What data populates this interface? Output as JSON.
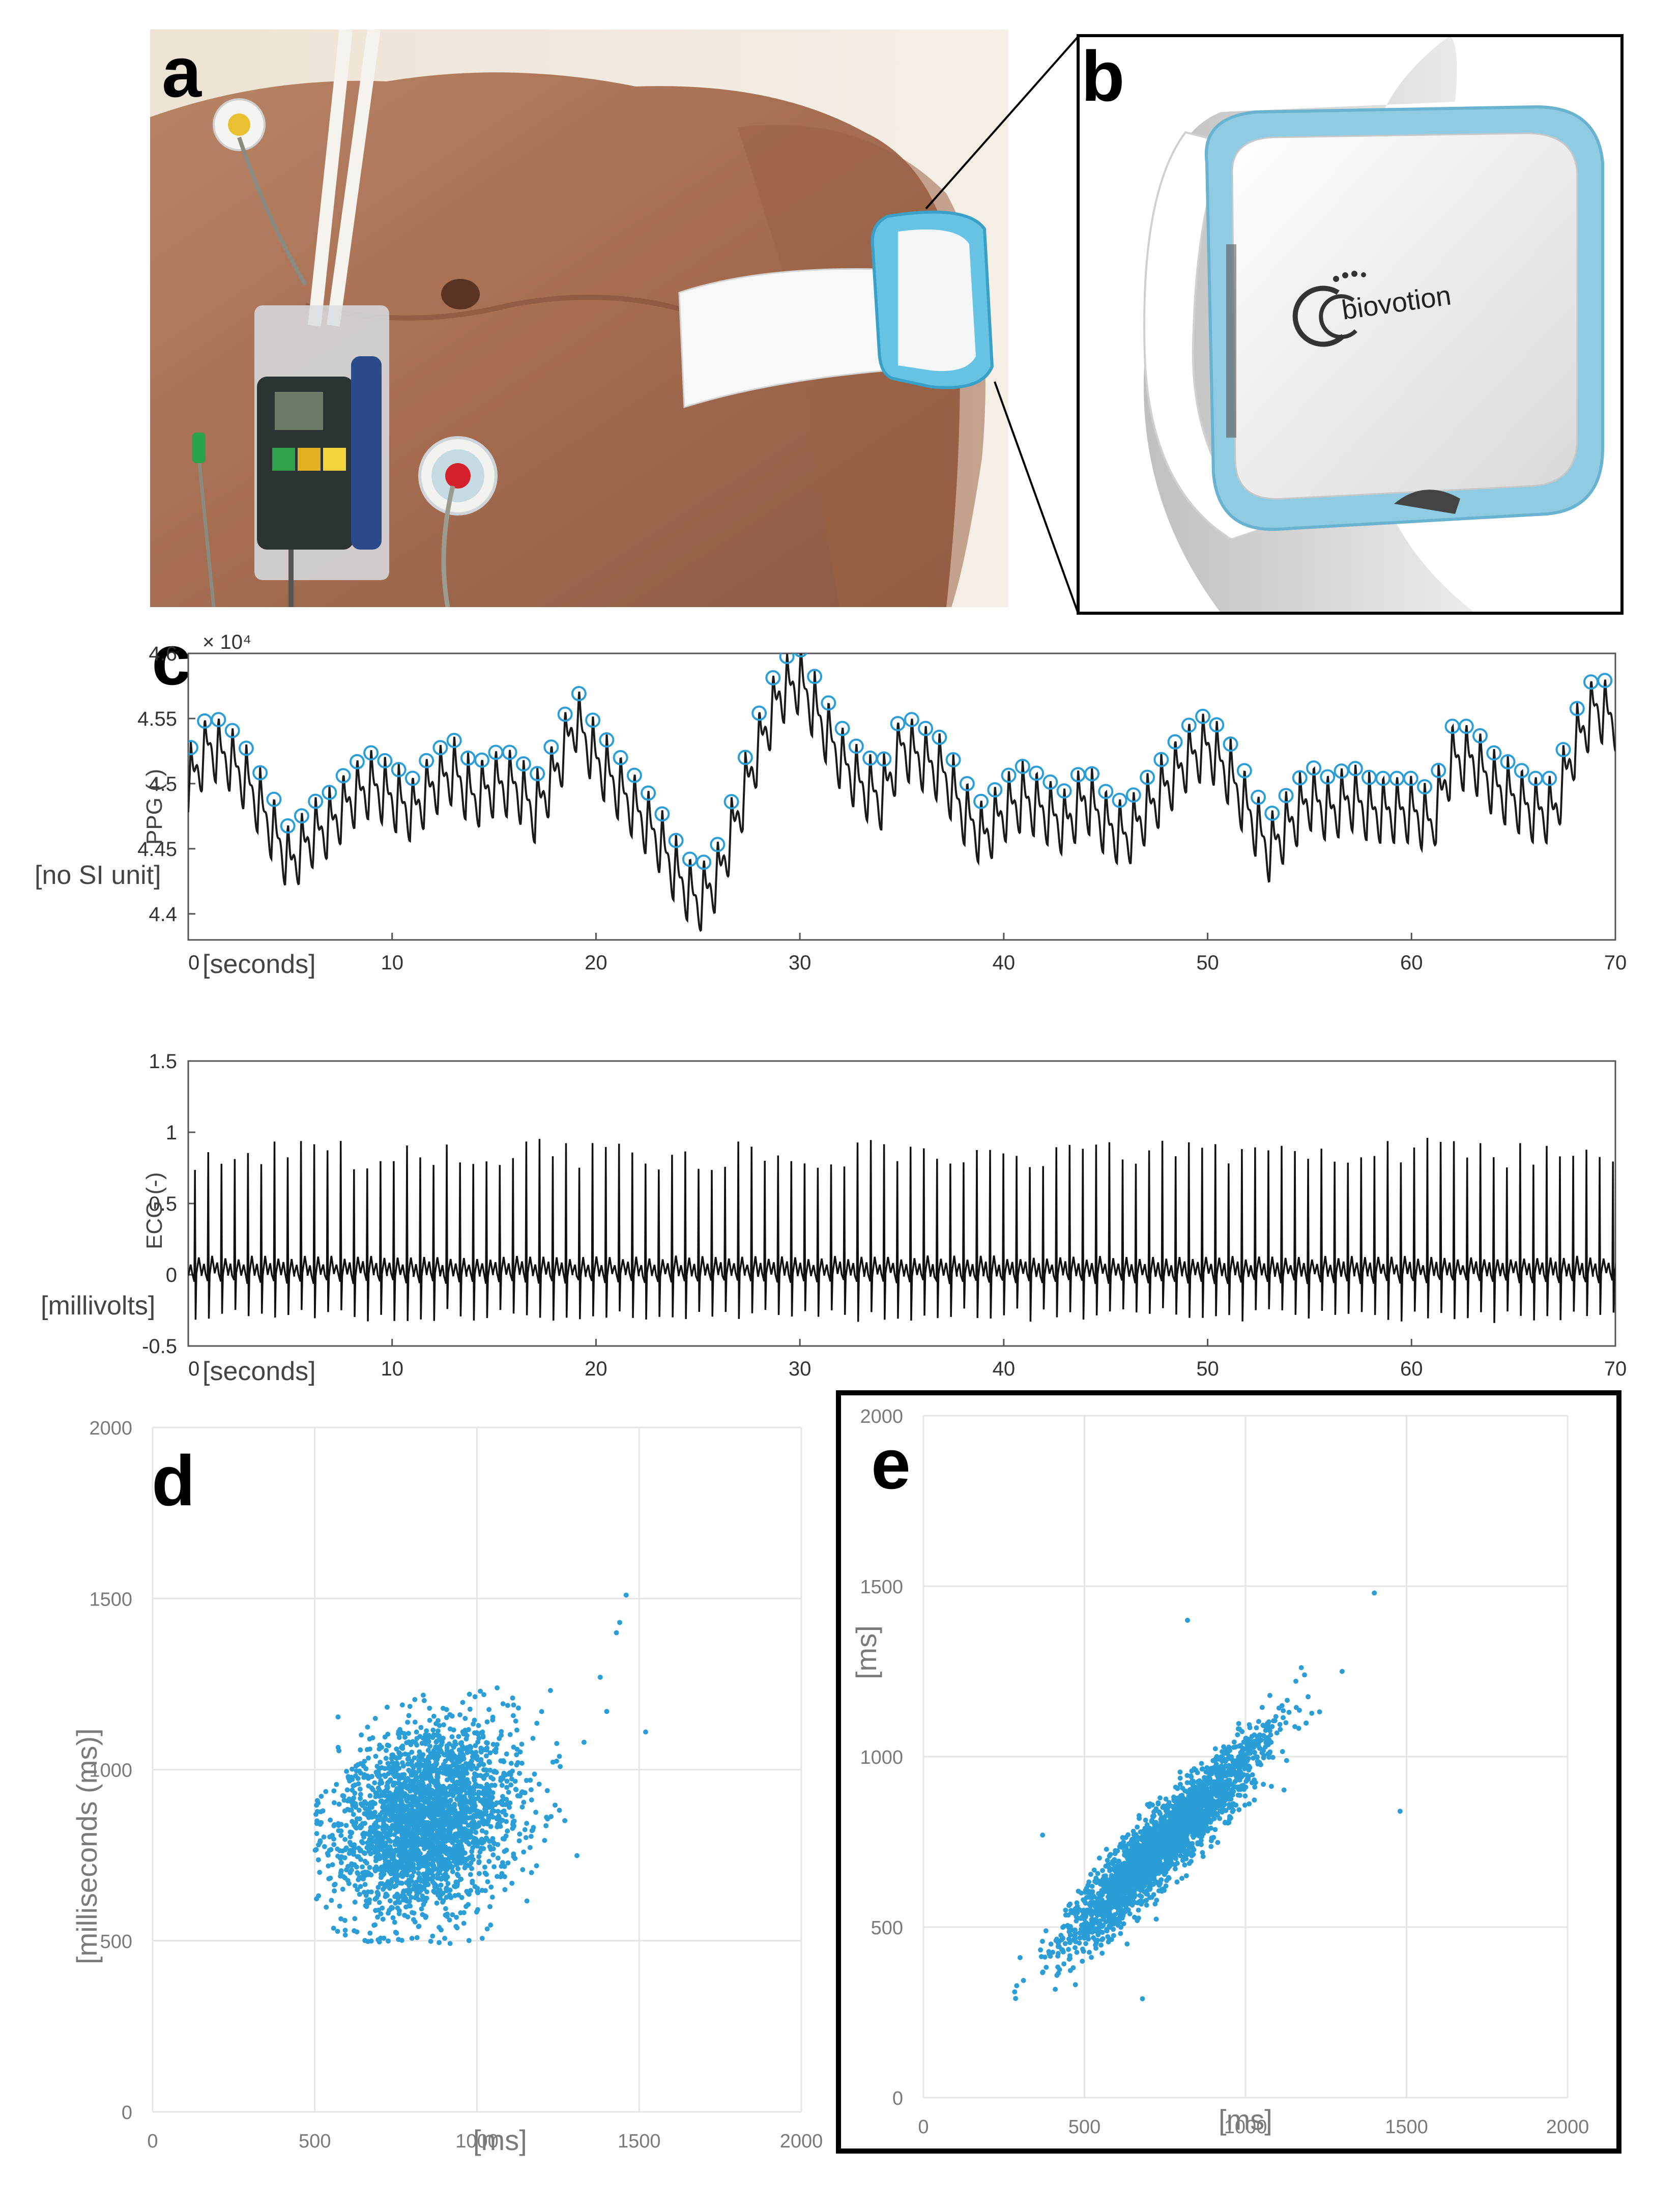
{
  "figure": {
    "panels": {
      "a": "a",
      "b": "b",
      "c": "c",
      "d": "d",
      "e": "e"
    },
    "device_logo": "biovotion",
    "colors": {
      "accent": "#2b9ed8",
      "trace": "#1a1a1a",
      "grid": "#e6e6e6",
      "frame": "#000000"
    }
  },
  "chart_data": [
    {
      "id": "ppg",
      "type": "line",
      "title": "",
      "ylabel": "PPG (-)",
      "yunit": "[no SI unit]",
      "xunit": "[seconds]",
      "exponent": "× 10⁴",
      "xlim": [
        0,
        70
      ],
      "ylim": [
        4.38,
        4.6
      ],
      "xticks": [
        "0",
        "10",
        "20",
        "30",
        "40",
        "50",
        "60",
        "70"
      ],
      "yticks": [
        "4.4",
        "4.45",
        "4.5",
        "4.55"
      ],
      "ytick_top": "4.6",
      "peak_marker": "blue circles at detected beat peaks",
      "baseline_points": [
        [
          0,
          4.5
        ],
        [
          1,
          4.53
        ],
        [
          2,
          4.52
        ],
        [
          3,
          4.5
        ],
        [
          4,
          4.47
        ],
        [
          5,
          4.44
        ],
        [
          6,
          4.46
        ],
        [
          7,
          4.47
        ],
        [
          8,
          4.49
        ],
        [
          9,
          4.5
        ],
        [
          10,
          4.49
        ],
        [
          11,
          4.48
        ],
        [
          12,
          4.5
        ],
        [
          13,
          4.51
        ],
        [
          14,
          4.49
        ],
        [
          15,
          4.5
        ],
        [
          16,
          4.5
        ],
        [
          17,
          4.48
        ],
        [
          18,
          4.51
        ],
        [
          19,
          4.55
        ],
        [
          20,
          4.52
        ],
        [
          21,
          4.5
        ],
        [
          22,
          4.48
        ],
        [
          23,
          4.46
        ],
        [
          24,
          4.43
        ],
        [
          25,
          4.41
        ],
        [
          26,
          4.43
        ],
        [
          27,
          4.48
        ],
        [
          28,
          4.53
        ],
        [
          29,
          4.57
        ],
        [
          30,
          4.58
        ],
        [
          31,
          4.55
        ],
        [
          32,
          4.52
        ],
        [
          33,
          4.5
        ],
        [
          34,
          4.49
        ],
        [
          35,
          4.53
        ],
        [
          36,
          4.52
        ],
        [
          37,
          4.51
        ],
        [
          38,
          4.48
        ],
        [
          39,
          4.46
        ],
        [
          40,
          4.48
        ],
        [
          41,
          4.49
        ],
        [
          42,
          4.48
        ],
        [
          43,
          4.47
        ],
        [
          44,
          4.49
        ],
        [
          45,
          4.47
        ],
        [
          46,
          4.46
        ],
        [
          47,
          4.48
        ],
        [
          48,
          4.5
        ],
        [
          49,
          4.52
        ],
        [
          50,
          4.53
        ],
        [
          51,
          4.51
        ],
        [
          52,
          4.48
        ],
        [
          53,
          4.45
        ],
        [
          54,
          4.47
        ],
        [
          55,
          4.49
        ],
        [
          56,
          4.48
        ],
        [
          57,
          4.49
        ],
        [
          58,
          4.48
        ],
        [
          59,
          4.48
        ],
        [
          60,
          4.48
        ],
        [
          61,
          4.47
        ],
        [
          62,
          4.52
        ],
        [
          63,
          4.52
        ],
        [
          64,
          4.5
        ],
        [
          65,
          4.49
        ],
        [
          66,
          4.48
        ],
        [
          67,
          4.48
        ],
        [
          68,
          4.53
        ],
        [
          69,
          4.56
        ],
        [
          70,
          4.55
        ]
      ]
    },
    {
      "id": "ecg",
      "type": "line",
      "title": "",
      "ylabel": "ECG (-)",
      "yunit": "[millivolts]",
      "xunit": "[seconds]",
      "xlim": [
        0,
        70
      ],
      "ylim": [
        -0.5,
        1.5
      ],
      "xticks": [
        "0",
        "10",
        "20",
        "30",
        "40",
        "50",
        "60",
        "70"
      ],
      "yticks": [
        "-0.5",
        "0",
        "0.5",
        "1",
        "1.5"
      ],
      "beat_interval_s": 0.65,
      "r_peak_mv": 0.95,
      "s_trough_mv": -0.3
    },
    {
      "id": "scatter-d",
      "type": "scatter",
      "xlabel": "[ms]",
      "ylabel": "[milliseconds (ms)]",
      "xlim": [
        0,
        2000
      ],
      "ylim": [
        0,
        2000
      ],
      "xticks": [
        "0",
        "500",
        "1000",
        "1500",
        "2000"
      ],
      "yticks": [
        "0",
        "500",
        "1000",
        "1500",
        "2000"
      ],
      "cloud": {
        "mean_x": 850,
        "mean_y": 850,
        "sd_major": 150,
        "sd_minor": 120,
        "x_min": 500,
        "y_min": 490
      },
      "outliers": [
        [
          1460,
          1510
        ],
        [
          1520,
          1110
        ],
        [
          1440,
          1430
        ],
        [
          1430,
          1400
        ],
        [
          1400,
          1170
        ],
        [
          1380,
          1270
        ],
        [
          1330,
          1080
        ]
      ]
    },
    {
      "id": "scatter-e",
      "type": "scatter",
      "xlabel": "[ms]",
      "ylabel": "[ms]",
      "xlim": [
        0,
        2000
      ],
      "ylim": [
        0,
        2000
      ],
      "xticks": [
        "0",
        "500",
        "1000",
        "1500",
        "2000"
      ],
      "yticks": [
        "0",
        "500",
        "1000",
        "1500",
        "2000"
      ],
      "cloud": {
        "mean_x": 750,
        "mean_y": 750,
        "sd_major": 210,
        "sd_minor": 40,
        "x_min": 280,
        "y_min": 280
      },
      "outliers": [
        [
          1400,
          1480
        ],
        [
          1480,
          840
        ],
        [
          820,
          1400
        ],
        [
          370,
          770
        ],
        [
          680,
          290
        ],
        [
          1300,
          1250
        ]
      ]
    }
  ]
}
